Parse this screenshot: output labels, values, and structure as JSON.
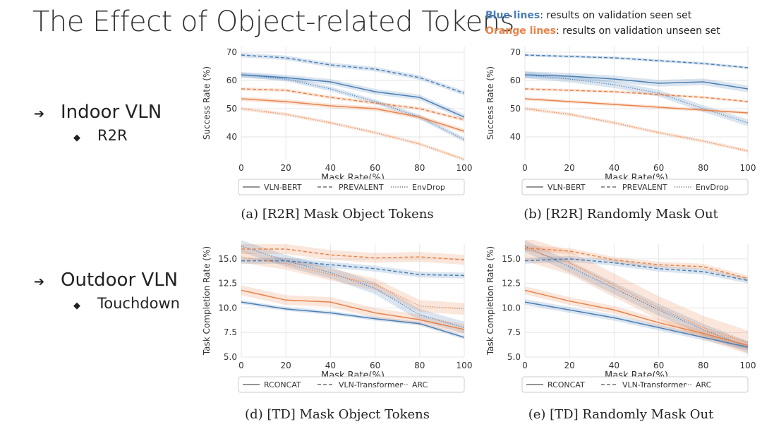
{
  "slide": {
    "title": "The Effect of Object-related Tokens",
    "note_blue_label": "Blue lines",
    "note_blue_text": ": results on validation seen set",
    "note_orange_label": "Orange lines",
    "note_orange_text": ": results on validation unseen set",
    "colors": {
      "blue": "#4a7fb5",
      "orange": "#e8834a"
    },
    "bullets": [
      {
        "text": "Indoor VLN",
        "sub": "R2R"
      },
      {
        "text": "Outdoor VLN",
        "sub": "Touchdown"
      }
    ],
    "bullet_arrow": "➔",
    "bullet_diamond": "◆"
  },
  "chart_data": [
    {
      "id": "a",
      "type": "line",
      "caption": "(a) [R2R] Mask Object Tokens",
      "xlabel": "Mask Rate(%)",
      "ylabel": "Success Rate (%)",
      "x": [
        0,
        20,
        40,
        60,
        80,
        100
      ],
      "xlim": [
        0,
        100
      ],
      "ylim": [
        32,
        72
      ],
      "yticks": [
        40,
        50,
        60,
        70
      ],
      "ytick_labels": [
        "40",
        "50",
        "60",
        "70"
      ],
      "legend": [
        "VLN-BERT",
        "PREVALENT",
        "EnvDrop"
      ],
      "series": [
        {
          "name": "VLN-BERT",
          "set": "seen",
          "color": "blue",
          "dash": "solid",
          "values": [
            62,
            61,
            59.5,
            56,
            54,
            47
          ],
          "band": 1
        },
        {
          "name": "PREVALENT",
          "set": "seen",
          "color": "blue",
          "dash": "dashed",
          "values": [
            69,
            68,
            65.5,
            64,
            61,
            55.5
          ],
          "band": 0.8
        },
        {
          "name": "EnvDrop",
          "set": "seen",
          "color": "blue",
          "dash": "dotted",
          "values": [
            62,
            60.5,
            57,
            52.5,
            47,
            39
          ],
          "band": 0.8
        },
        {
          "name": "VLN-BERT",
          "set": "unseen",
          "color": "orange",
          "dash": "solid",
          "values": [
            53.5,
            52.5,
            51,
            50,
            47,
            42
          ],
          "band": 0.8
        },
        {
          "name": "PREVALENT",
          "set": "unseen",
          "color": "orange",
          "dash": "dashed",
          "values": [
            57,
            56.5,
            54,
            52,
            50,
            46
          ],
          "band": 0.6
        },
        {
          "name": "EnvDrop",
          "set": "unseen",
          "color": "orange",
          "dash": "dotted",
          "values": [
            50,
            48,
            45,
            41.5,
            37.5,
            32
          ],
          "band": 0.6
        }
      ]
    },
    {
      "id": "b",
      "type": "line",
      "caption": "(b) [R2R] Randomly Mask Out",
      "xlabel": "Mask Rate(%)",
      "ylabel": "Success Rate (%)",
      "x": [
        0,
        20,
        40,
        60,
        80,
        100
      ],
      "xlim": [
        0,
        100
      ],
      "ylim": [
        32,
        72
      ],
      "yticks": [
        40,
        50,
        60,
        70
      ],
      "ytick_labels": [
        "40",
        "50",
        "60",
        "70"
      ],
      "legend": [
        "VLN-BERT",
        "PREVALENT",
        "EnvDrop"
      ],
      "series": [
        {
          "name": "VLN-BERT",
          "set": "seen",
          "color": "blue",
          "dash": "solid",
          "values": [
            62,
            61.5,
            60.5,
            59,
            59.5,
            57
          ],
          "band": 1.2
        },
        {
          "name": "PREVALENT",
          "set": "seen",
          "color": "blue",
          "dash": "dashed",
          "values": [
            69,
            68.5,
            68,
            67,
            66,
            64.5
          ],
          "band": 0.5
        },
        {
          "name": "EnvDrop",
          "set": "seen",
          "color": "blue",
          "dash": "dotted",
          "values": [
            62,
            60.5,
            58.5,
            55.5,
            50,
            45
          ],
          "band": 1.2
        },
        {
          "name": "VLN-BERT",
          "set": "unseen",
          "color": "orange",
          "dash": "solid",
          "values": [
            53.5,
            52.5,
            51.5,
            50.5,
            49.5,
            48.5
          ],
          "band": 0.6
        },
        {
          "name": "PREVALENT",
          "set": "unseen",
          "color": "orange",
          "dash": "dashed",
          "values": [
            57,
            56.5,
            56,
            55,
            54,
            52.5
          ],
          "band": 0.5
        },
        {
          "name": "EnvDrop",
          "set": "unseen",
          "color": "orange",
          "dash": "dotted",
          "values": [
            50,
            48,
            45,
            41.5,
            38.5,
            35
          ],
          "band": 0.6
        }
      ]
    },
    {
      "id": "d",
      "type": "line",
      "caption": "(d) [TD] Mask Object Tokens",
      "xlabel": "Mask Rate(%)",
      "ylabel": "Task Completion Rate (%)",
      "x": [
        0,
        20,
        40,
        60,
        80,
        100
      ],
      "xlim": [
        0,
        100
      ],
      "ylim": [
        5,
        16.5
      ],
      "yticks": [
        5,
        7.5,
        10,
        12.5,
        15
      ],
      "ytick_labels": [
        "5.0",
        "7.5",
        "10.0",
        "12.5",
        "15.0"
      ],
      "legend": [
        "RCONCAT",
        "VLN-Transformer",
        "ARC"
      ],
      "series": [
        {
          "name": "RCONCAT",
          "set": "seen",
          "color": "blue",
          "dash": "solid",
          "values": [
            10.6,
            9.9,
            9.5,
            8.9,
            8.4,
            7.0
          ],
          "band": 0.2
        },
        {
          "name": "VLN-Transformer",
          "set": "seen",
          "color": "blue",
          "dash": "dashed",
          "values": [
            14.8,
            14.8,
            14.4,
            14.0,
            13.4,
            13.3
          ],
          "band": 0.3
        },
        {
          "name": "ARC",
          "set": "seen",
          "color": "blue",
          "dash": "dotted",
          "values": [
            16.3,
            14.8,
            13.6,
            12.0,
            9.3,
            8.0
          ],
          "band": 0.6
        },
        {
          "name": "RCONCAT",
          "set": "unseen",
          "color": "orange",
          "dash": "solid",
          "values": [
            11.8,
            10.8,
            10.6,
            9.5,
            8.8,
            7.8
          ],
          "band": 0.5
        },
        {
          "name": "VLN-Transformer",
          "set": "unseen",
          "color": "orange",
          "dash": "dashed",
          "values": [
            16.0,
            16.0,
            15.4,
            15.1,
            15.2,
            14.9
          ],
          "band": 0.5
        },
        {
          "name": "ARC",
          "set": "unseen",
          "color": "orange",
          "dash": "dotted",
          "values": [
            15.2,
            14.5,
            13.4,
            12.4,
            10.2,
            9.9
          ],
          "band": 0.6
        }
      ]
    },
    {
      "id": "e",
      "type": "line",
      "caption": "(e) [TD] Randomly Mask Out",
      "xlabel": "Mask Rate(%)",
      "ylabel": "Task Completion Rate (%)",
      "x": [
        0,
        20,
        40,
        60,
        80,
        100
      ],
      "xlim": [
        0,
        100
      ],
      "ylim": [
        5,
        16.5
      ],
      "yticks": [
        5,
        7.5,
        10,
        12.5,
        15
      ],
      "ytick_labels": [
        "5.0",
        "7.5",
        "10.0",
        "12.5",
        "15.0"
      ],
      "legend": [
        "RCONCAT",
        "VLN-Transformer",
        "ARC"
      ],
      "series": [
        {
          "name": "RCONCAT",
          "set": "seen",
          "color": "blue",
          "dash": "solid",
          "values": [
            10.6,
            9.8,
            9.0,
            8.0,
            7.0,
            6.0
          ],
          "band": 0.3
        },
        {
          "name": "VLN-Transformer",
          "set": "seen",
          "color": "blue",
          "dash": "dashed",
          "values": [
            14.8,
            15.0,
            14.6,
            14.0,
            13.7,
            12.8
          ],
          "band": 0.3
        },
        {
          "name": "ARC",
          "set": "seen",
          "color": "blue",
          "dash": "dotted",
          "values": [
            16.3,
            14.2,
            12.0,
            9.8,
            7.8,
            6.0
          ],
          "band": 0.6
        },
        {
          "name": "RCONCAT",
          "set": "unseen",
          "color": "orange",
          "dash": "solid",
          "values": [
            11.8,
            10.7,
            9.8,
            8.5,
            7.4,
            6.2
          ],
          "band": 0.4
        },
        {
          "name": "VLN-Transformer",
          "set": "unseen",
          "color": "orange",
          "dash": "dashed",
          "values": [
            16.1,
            15.8,
            14.9,
            14.4,
            14.2,
            13.0
          ],
          "band": 0.3
        },
        {
          "name": "ARC",
          "set": "unseen",
          "color": "orange",
          "dash": "dotted",
          "values": [
            16.0,
            14.6,
            12.3,
            10.0,
            8.0,
            6.5
          ],
          "band": 1.2
        }
      ]
    }
  ]
}
